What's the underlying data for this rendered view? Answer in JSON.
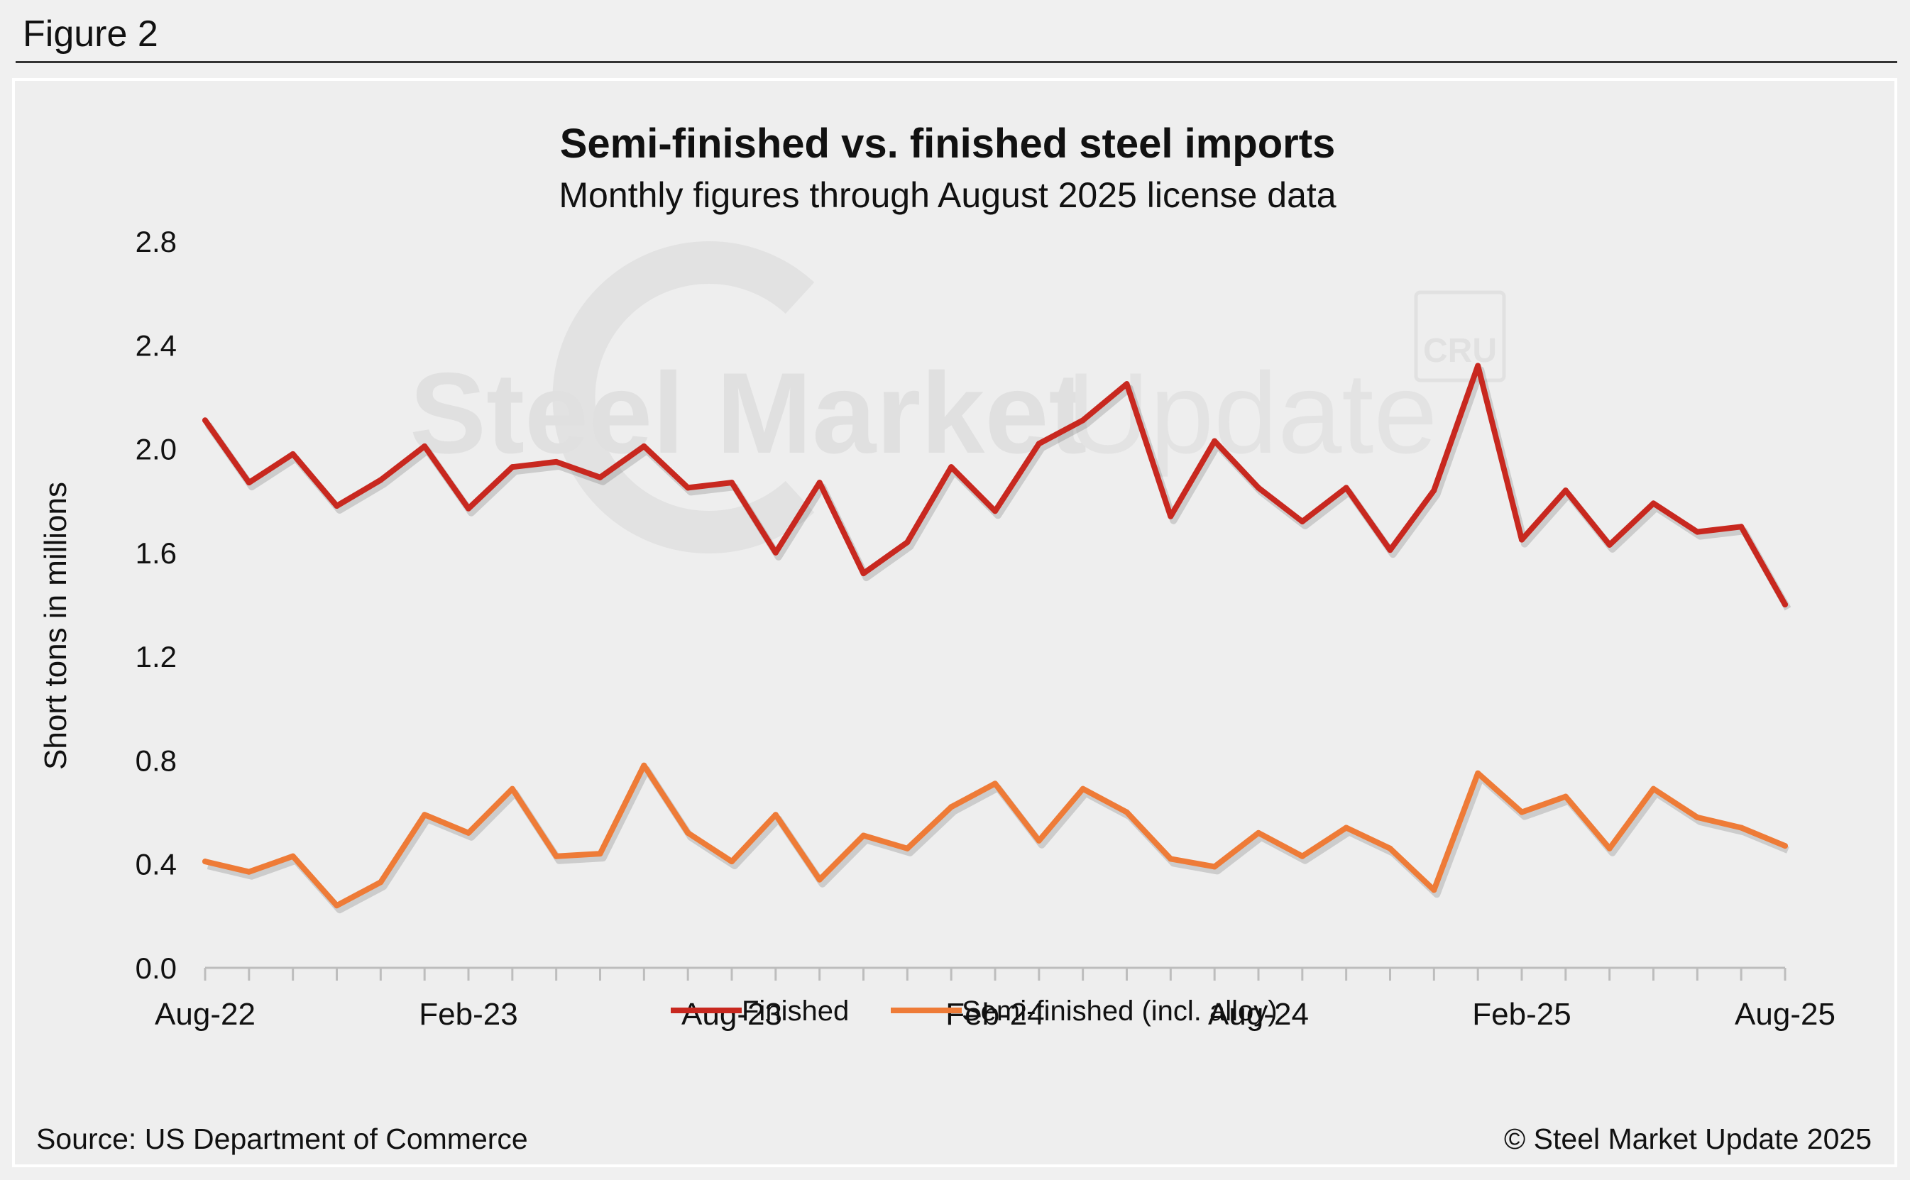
{
  "figure_label": "Figure 2",
  "source": "Source: US Department of Commerce",
  "copyright": "© Steel Market Update 2025",
  "watermark": {
    "primary": "Steel Market",
    "secondary": "Update",
    "badge": "CRU"
  },
  "colors": {
    "finished": "#c8281f",
    "semi_finished": "#ee7b37"
  },
  "chart_data": {
    "type": "line",
    "title": "Semi-finished vs. finished steel imports",
    "subtitle": "Monthly figures through August 2025 license data",
    "xlabel": "",
    "ylabel": "Short tons in millions",
    "ylim": [
      0,
      2.8
    ],
    "yticks": [
      "0.0",
      "0.4",
      "0.8",
      "1.2",
      "1.6",
      "2.0",
      "2.4",
      "2.8"
    ],
    "x": [
      "Aug-22",
      "Sep-22",
      "Oct-22",
      "Nov-22",
      "Dec-22",
      "Jan-23",
      "Feb-23",
      "Mar-23",
      "Apr-23",
      "May-23",
      "Jun-23",
      "Jul-23",
      "Aug-23",
      "Sep-23",
      "Oct-23",
      "Nov-23",
      "Dec-23",
      "Jan-24",
      "Feb-24",
      "Mar-24",
      "Apr-24",
      "May-24",
      "Jun-24",
      "Jul-24",
      "Aug-24",
      "Sep-24",
      "Oct-24",
      "Nov-24",
      "Dec-24",
      "Jan-25",
      "Feb-25",
      "Mar-25",
      "Apr-25",
      "May-25",
      "Jun-25",
      "Jul-25",
      "Aug-25"
    ],
    "xtick_labels": [
      "Aug-22",
      "Feb-23",
      "Aug-23",
      "Feb-24",
      "Aug-24",
      "Feb-25",
      "Aug-25"
    ],
    "series": [
      {
        "name": "Finished",
        "values": [
          2.11,
          1.87,
          1.98,
          1.78,
          1.88,
          2.01,
          1.77,
          1.93,
          1.95,
          1.89,
          2.01,
          1.85,
          1.87,
          1.6,
          1.87,
          1.52,
          1.64,
          1.93,
          1.76,
          2.02,
          2.11,
          2.25,
          1.74,
          2.03,
          1.85,
          1.72,
          1.85,
          1.61,
          1.84,
          2.32,
          1.65,
          1.84,
          1.63,
          1.79,
          1.68,
          1.7,
          1.4
        ]
      },
      {
        "name": "Semi-finished (incl. alloy)",
        "values": [
          0.41,
          0.37,
          0.43,
          0.24,
          0.33,
          0.59,
          0.52,
          0.69,
          0.43,
          0.44,
          0.78,
          0.52,
          0.41,
          0.59,
          0.34,
          0.51,
          0.46,
          0.62,
          0.71,
          0.49,
          0.69,
          0.6,
          0.42,
          0.39,
          0.52,
          0.43,
          0.54,
          0.46,
          0.3,
          0.75,
          0.6,
          0.66,
          0.46,
          0.69,
          0.58,
          0.54,
          0.47
        ]
      }
    ]
  }
}
